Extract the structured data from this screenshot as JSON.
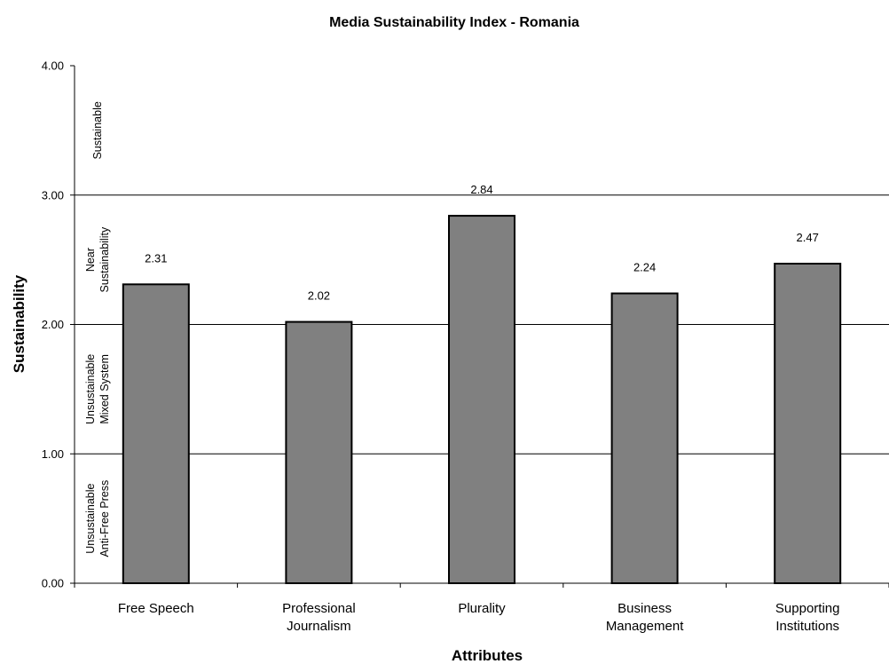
{
  "chart_data": {
    "type": "bar",
    "title": "Media Sustainability Index - Romania",
    "xlabel": "Attributes",
    "ylabel": "Sustainability",
    "ylim": [
      0,
      4
    ],
    "y_ticks": [
      "0.00",
      "1.00",
      "2.00",
      "3.00",
      "4.00"
    ],
    "grid": true,
    "gridlines_at": [
      1,
      2,
      3
    ],
    "categories": [
      [
        "Free Speech"
      ],
      [
        "Professional",
        "Journalism"
      ],
      [
        "Plurality"
      ],
      [
        "Business",
        "Management"
      ],
      [
        "Supporting",
        "Institutions"
      ]
    ],
    "values": [
      2.31,
      2.02,
      2.84,
      2.24,
      2.47
    ],
    "data_labels": [
      "2.31",
      "2.02",
      "2.84",
      "2.24",
      "2.47"
    ],
    "bar_color": "#808080",
    "bar_edge_color": "#000000",
    "zones": [
      {
        "lines": [
          "Sustainable"
        ],
        "range": [
          3,
          4
        ]
      },
      {
        "lines": [
          "Near",
          "Sustainability"
        ],
        "range": [
          2,
          3
        ]
      },
      {
        "lines": [
          "Unsustainable",
          "Mixed System"
        ],
        "range": [
          1,
          2
        ]
      },
      {
        "lines": [
          "Unsustainable",
          "Anti-Free Press"
        ],
        "range": [
          0,
          1
        ]
      }
    ]
  }
}
